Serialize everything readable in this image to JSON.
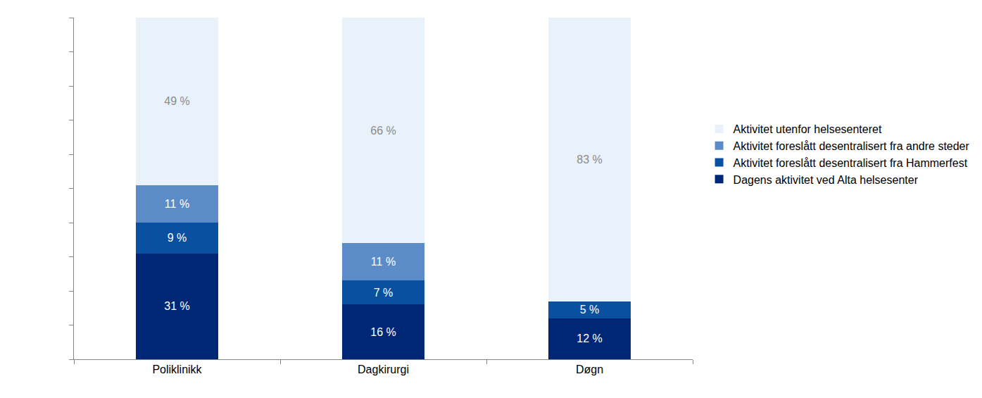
{
  "chart_data": {
    "type": "bar",
    "stacked": true,
    "data_labels": true,
    "tick_labels": "x",
    "grid": false,
    "legend": "right",
    "categories": [
      "Poliklinikk",
      "Dagkirurgi",
      "Døgn"
    ],
    "ylim": [
      0,
      100
    ],
    "yticks": [
      0,
      10,
      20,
      30,
      40,
      50,
      60,
      70,
      80,
      90,
      100
    ],
    "series": [
      {
        "name": "Dagens aktivitet ved Alta helsesenter",
        "color": "#002776",
        "values": [
          31,
          16,
          12
        ],
        "value_labels": [
          "31 %",
          "16 %",
          "12 %"
        ]
      },
      {
        "name": "Aktivitet foreslått desentralisert fra Hammerfest",
        "color": "#0a50a1",
        "values": [
          9,
          7,
          5
        ],
        "value_labels": [
          "9 %",
          "7 %",
          "5 %"
        ]
      },
      {
        "name": "Aktivitet foreslått desentralisert fra andre steder",
        "color": "#5b8cc8",
        "values": [
          11,
          11,
          null
        ],
        "value_labels": [
          "11 %",
          "11 %",
          null
        ]
      },
      {
        "name": "Aktivitet utenfor helsesenteret",
        "color": "#e9f1fa",
        "values": [
          49,
          66,
          83
        ],
        "value_labels": [
          "49 %",
          "66 %",
          "83 %"
        ]
      }
    ]
  }
}
